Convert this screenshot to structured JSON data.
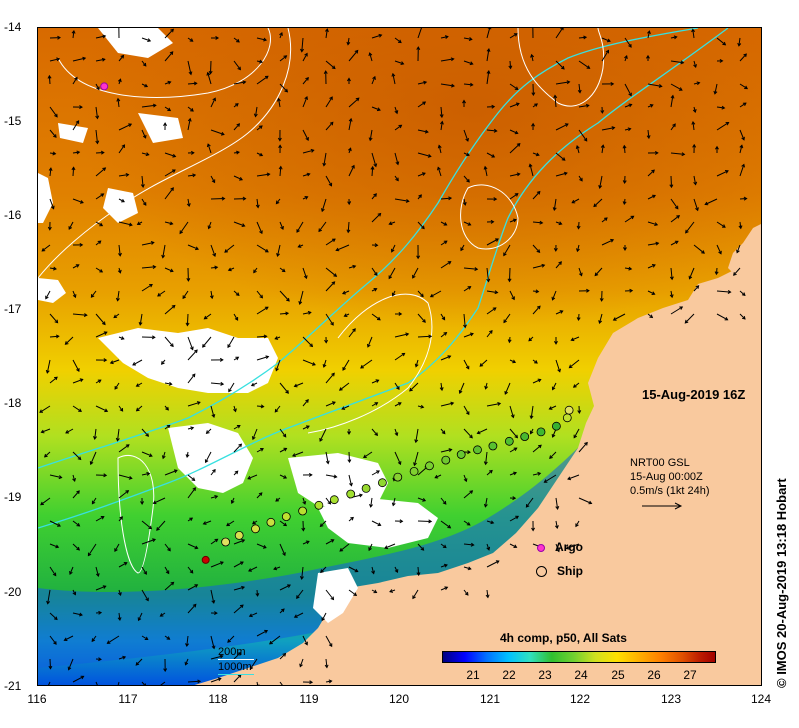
{
  "map": {
    "date": "15-Aug-2019 16Z",
    "latitude_labels": [
      "-14",
      "-15",
      "-16",
      "-17",
      "-18",
      "-19",
      "-20",
      "-21"
    ],
    "longitude_labels": [
      "116",
      "117",
      "118",
      "119",
      "120",
      "121",
      "122",
      "123",
      "124"
    ],
    "lat_range": [
      -21,
      -14
    ],
    "lon_range": [
      116,
      124
    ],
    "colors": {
      "land": "#f9c99e",
      "cloud": "#ffffff",
      "contour_200m": "#ffffff",
      "contour_1000m": "#38e0e0",
      "argo": "#ff33cc",
      "argo_red": "#cc0000"
    }
  },
  "velocity_legend": {
    "line1": "NRT00 GSL",
    "line2": "15-Aug 00:00Z",
    "line3": "0.5m/s (1kt 24h)"
  },
  "legend": {
    "argo_label": "Argo",
    "ship_label": "Ship",
    "argo_icon": "magenta-star",
    "ship_icon": "open-circle"
  },
  "colorbar": {
    "title": "4h comp, p50, All Sats",
    "ticks": [
      "21",
      "22",
      "23",
      "24",
      "25",
      "26",
      "27"
    ],
    "tick_values": [
      21,
      22,
      23,
      24,
      25,
      26,
      27
    ],
    "range": [
      20.2,
      27.7
    ],
    "unit": ""
  },
  "depth_contours": {
    "label_200": "200m",
    "label_1000": "1000m"
  },
  "credit": "© IMOS 20-Aug-2019 13:18 Hobart",
  "argo_floats": [
    {
      "lon": 116.73,
      "lat": -14.62,
      "color": "magenta"
    },
    {
      "lon": 117.85,
      "lat": -19.65,
      "color": "red"
    }
  ],
  "ship_track": [
    {
      "lon": 118.07,
      "lat": -19.46
    },
    {
      "lon": 118.22,
      "lat": -19.39
    },
    {
      "lon": 118.4,
      "lat": -19.32
    },
    {
      "lon": 118.57,
      "lat": -19.25
    },
    {
      "lon": 118.74,
      "lat": -19.19
    },
    {
      "lon": 118.92,
      "lat": -19.13
    },
    {
      "lon": 119.1,
      "lat": -19.07
    },
    {
      "lon": 119.27,
      "lat": -19.01
    },
    {
      "lon": 119.45,
      "lat": -18.95
    },
    {
      "lon": 119.62,
      "lat": -18.89
    },
    {
      "lon": 119.8,
      "lat": -18.83
    },
    {
      "lon": 119.97,
      "lat": -18.77
    },
    {
      "lon": 120.15,
      "lat": -18.71
    },
    {
      "lon": 120.32,
      "lat": -18.65
    },
    {
      "lon": 120.5,
      "lat": -18.59
    },
    {
      "lon": 120.67,
      "lat": -18.53
    },
    {
      "lon": 120.85,
      "lat": -18.48
    },
    {
      "lon": 121.02,
      "lat": -18.44
    },
    {
      "lon": 121.2,
      "lat": -18.39
    },
    {
      "lon": 121.37,
      "lat": -18.34
    },
    {
      "lon": 121.55,
      "lat": -18.29
    },
    {
      "lon": 121.72,
      "lat": -18.23
    },
    {
      "lon": 121.84,
      "lat": -18.14
    },
    {
      "lon": 121.86,
      "lat": -18.06
    }
  ]
}
